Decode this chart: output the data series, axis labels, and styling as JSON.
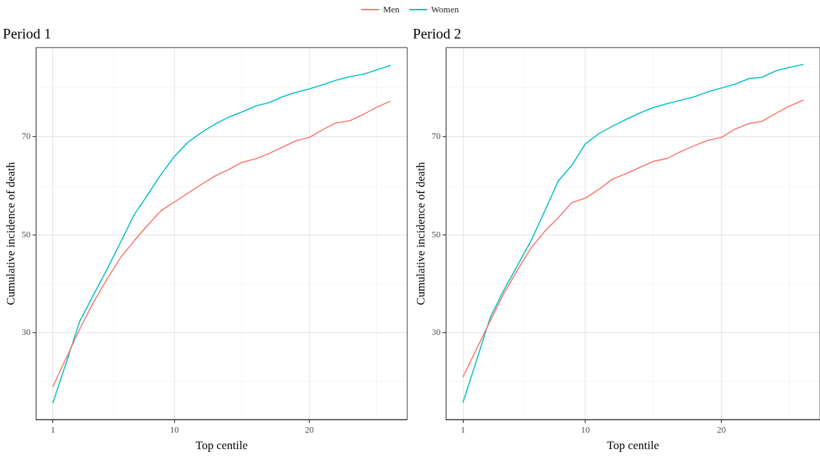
{
  "chart_data": [
    {
      "type": "line",
      "title": "Period 1",
      "xlabel": "Top centile",
      "ylabel": "Cumulative incidence of death",
      "x": [
        1,
        2,
        3,
        4,
        5,
        6,
        7,
        8,
        9,
        10,
        11,
        12,
        13,
        14,
        15,
        16,
        17,
        18,
        19,
        20,
        21,
        22,
        23,
        24,
        25,
        26
      ],
      "series": [
        {
          "name": "Men",
          "color": "#f8766d",
          "values": [
            19.0,
            24.9,
            30.8,
            36.2,
            40.9,
            45.3,
            48.7,
            51.9,
            54.9,
            56.7,
            58.5,
            60.3,
            62.0,
            63.3,
            64.8,
            65.5,
            66.6,
            67.9,
            69.2,
            69.9,
            71.5,
            72.9,
            73.3,
            74.6,
            76.1,
            77.3
          ]
        },
        {
          "name": "Women",
          "color": "#00bfc4",
          "values": [
            15.7,
            24.0,
            32.4,
            37.7,
            42.9,
            48.4,
            54.0,
            58.1,
            62.3,
            66.0,
            68.9,
            70.9,
            72.6,
            74.0,
            75.1,
            76.3,
            77.0,
            78.2,
            79.1,
            79.8,
            80.7,
            81.6,
            82.3,
            82.8,
            83.7,
            84.6
          ]
        }
      ],
      "xlim": [
        -0.25,
        27.25
      ],
      "ylim": [
        12.25,
        88.25
      ],
      "xticks": [
        1,
        {
          "value": 5.5,
          "label": null
        },
        10,
        {
          "value": 15,
          "label": null
        },
        20,
        {
          "value": 25,
          "label": null
        }
      ],
      "yticks": [
        {
          "value": 20,
          "label": null
        },
        30,
        {
          "value": 40,
          "label": null
        },
        50,
        {
          "value": 60,
          "label": null
        },
        70,
        {
          "value": 80,
          "label": null
        }
      ],
      "grid": true,
      "legend": "top",
      "marker": "none",
      "line_style": "solid"
    },
    {
      "type": "line",
      "title": "Period 2",
      "xlabel": "Top centile",
      "ylabel": "Cumulative incidence of death",
      "x": [
        1,
        2,
        3,
        4,
        5,
        6,
        7,
        8,
        9,
        10,
        11,
        12,
        13,
        14,
        15,
        16,
        17,
        18,
        19,
        20,
        21,
        22,
        23,
        24,
        25,
        26
      ],
      "series": [
        {
          "name": "Men",
          "color": "#f8766d",
          "values": [
            21.0,
            26.7,
            32.4,
            38.0,
            42.8,
            47.3,
            50.7,
            53.5,
            56.6,
            57.5,
            59.3,
            61.4,
            62.5,
            63.8,
            65.0,
            65.6,
            67.0,
            68.2,
            69.3,
            69.9,
            71.6,
            72.7,
            73.2,
            74.8,
            76.3,
            77.5
          ]
        },
        {
          "name": "Women",
          "color": "#00bfc4",
          "values": [
            15.8,
            24.4,
            33.1,
            38.7,
            43.7,
            48.8,
            54.8,
            61.0,
            64.2,
            68.6,
            70.7,
            72.2,
            73.6,
            74.9,
            76.0,
            76.8,
            77.5,
            78.2,
            79.2,
            80.0,
            80.8,
            81.9,
            82.2,
            83.5,
            84.2,
            84.8
          ]
        }
      ],
      "xlim": [
        -0.25,
        27.25
      ],
      "ylim": [
        12.25,
        88.25
      ],
      "xticks": [
        1,
        {
          "value": 5.5,
          "label": null
        },
        10,
        {
          "value": 15,
          "label": null
        },
        20,
        {
          "value": 25,
          "label": null
        }
      ],
      "yticks": [
        {
          "value": 20,
          "label": null
        },
        30,
        {
          "value": 40,
          "label": null
        },
        50,
        {
          "value": 60,
          "label": null
        },
        70,
        {
          "value": 80,
          "label": null
        }
      ],
      "grid": true,
      "legend": "top",
      "marker": "none",
      "line_style": "solid"
    }
  ]
}
